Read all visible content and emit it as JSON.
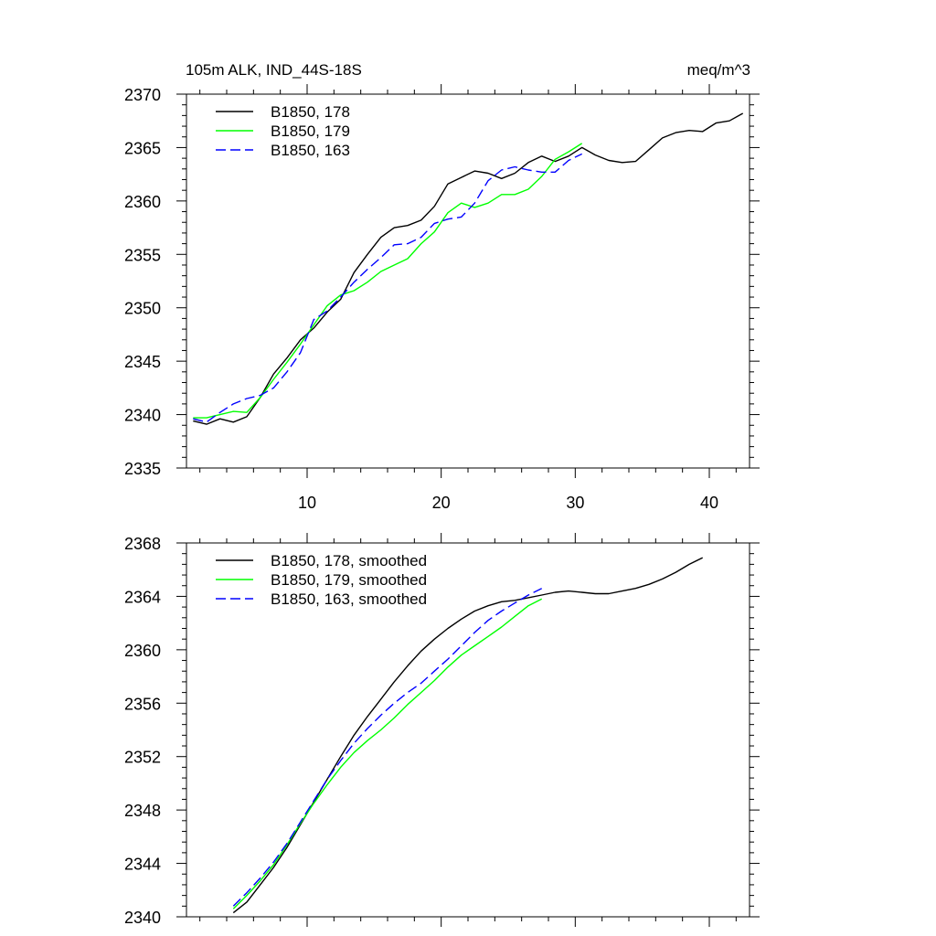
{
  "chart_data": [
    {
      "type": "line",
      "title_left": "105m ALK, IND_44S-18S",
      "title_right": "meq/m^3",
      "xlim": [
        1,
        43
      ],
      "ylim": [
        2335,
        2370
      ],
      "x_ticks": [
        10,
        20,
        30,
        40
      ],
      "x_tick_labels": [
        "10",
        "20",
        "30",
        "40"
      ],
      "y_ticks": [
        2335,
        2340,
        2345,
        2350,
        2355,
        2360,
        2365,
        2370
      ],
      "y_tick_labels": [
        "2335",
        "2340",
        "2345",
        "2350",
        "2355",
        "2360",
        "2365",
        "2370"
      ],
      "legend_position": "top-left",
      "series": [
        {
          "name": "B1850, 178",
          "color": "#000000",
          "dash": "solid",
          "x": [
            1.5,
            2.5,
            3.5,
            4.5,
            5.5,
            6.5,
            7.5,
            8.5,
            9.5,
            10.5,
            11.5,
            12.5,
            13.5,
            14.5,
            15.5,
            16.5,
            17.5,
            18.5,
            19.5,
            20.5,
            21.5,
            22.5,
            23.5,
            24.5,
            25.5,
            26.5,
            27.5,
            28.5,
            29.5,
            30.5,
            31.5,
            32.5,
            33.5,
            34.5,
            35.5,
            36.5,
            37.5,
            38.5,
            39.5,
            40.5,
            41.5,
            42.5
          ],
          "y": [
            2339.4,
            2339.1,
            2339.6,
            2339.3,
            2339.8,
            2341.6,
            2343.8,
            2345.3,
            2347.0,
            2348.1,
            2349.6,
            2350.8,
            2353.3,
            2355.0,
            2356.6,
            2357.5,
            2357.7,
            2358.2,
            2359.5,
            2361.6,
            2362.2,
            2362.8,
            2362.6,
            2362.1,
            2362.6,
            2363.6,
            2364.2,
            2363.7,
            2364.2,
            2365.0,
            2364.3,
            2363.8,
            2363.6,
            2363.7,
            2364.8,
            2365.9,
            2366.4,
            2366.6,
            2366.5,
            2367.3,
            2367.5,
            2368.2
          ]
        },
        {
          "name": "B1850, 179",
          "color": "#00ff00",
          "dash": "solid",
          "x": [
            1.5,
            2.5,
            3.5,
            4.5,
            5.5,
            6.5,
            7.5,
            8.5,
            9.5,
            10.5,
            11.5,
            12.5,
            13.5,
            14.5,
            15.5,
            16.5,
            17.5,
            18.5,
            19.5,
            20.5,
            21.5,
            22.5,
            23.5,
            24.5,
            25.5,
            26.5,
            27.5,
            28.5,
            29.5,
            30.5
          ],
          "y": [
            2339.7,
            2339.7,
            2340.0,
            2340.3,
            2340.2,
            2341.6,
            2343.3,
            2344.9,
            2346.6,
            2348.4,
            2350.2,
            2351.2,
            2351.6,
            2352.4,
            2353.4,
            2354.0,
            2354.6,
            2356.0,
            2357.1,
            2358.9,
            2359.8,
            2359.4,
            2359.8,
            2360.6,
            2360.6,
            2361.1,
            2362.3,
            2363.9,
            2364.6,
            2365.4
          ]
        },
        {
          "name": "B1850, 163",
          "color": "#0000ff",
          "dash": "dashed",
          "x": [
            1.5,
            2.5,
            3.5,
            4.5,
            5.5,
            6.5,
            7.5,
            8.5,
            9.5,
            10.5,
            11.5,
            12.5,
            13.5,
            14.5,
            15.5,
            16.5,
            17.5,
            18.5,
            19.5,
            20.5,
            21.5,
            22.5,
            23.5,
            24.5,
            25.5,
            26.5,
            27.5,
            28.5,
            29.5,
            30.5
          ],
          "y": [
            2339.6,
            2339.3,
            2340.2,
            2341.0,
            2341.5,
            2341.8,
            2342.5,
            2344.0,
            2345.8,
            2348.9,
            2349.7,
            2351.0,
            2352.4,
            2353.6,
            2354.7,
            2355.9,
            2356.0,
            2356.6,
            2357.9,
            2358.3,
            2358.5,
            2359.8,
            2361.9,
            2362.9,
            2363.2,
            2362.9,
            2362.7,
            2362.7,
            2363.8,
            2364.4
          ]
        }
      ]
    },
    {
      "type": "line",
      "xlim": [
        1,
        43
      ],
      "ylim": [
        2340,
        2368
      ],
      "x_ticks": [
        10,
        20,
        30,
        40
      ],
      "y_ticks": [
        2340,
        2344,
        2348,
        2352,
        2356,
        2360,
        2364,
        2368
      ],
      "y_tick_labels": [
        "2340",
        "2344",
        "2348",
        "2352",
        "2356",
        "2360",
        "2364",
        "2368"
      ],
      "legend_position": "top-left",
      "series": [
        {
          "name": "B1850, 178, smoothed",
          "color": "#000000",
          "dash": "solid",
          "x": [
            4.5,
            5.5,
            6.5,
            7.5,
            8.5,
            9.5,
            10.5,
            11.5,
            12.5,
            13.5,
            14.5,
            15.5,
            16.5,
            17.5,
            18.5,
            19.5,
            20.5,
            21.5,
            22.5,
            23.5,
            24.5,
            25.5,
            26.5,
            27.5,
            28.5,
            29.5,
            30.5,
            31.5,
            32.5,
            33.5,
            34.5,
            35.5,
            36.5,
            37.5,
            38.5,
            39.5
          ],
          "y": [
            2340.3,
            2341.1,
            2342.4,
            2343.7,
            2345.2,
            2346.9,
            2348.6,
            2350.3,
            2352.0,
            2353.6,
            2355.0,
            2356.3,
            2357.6,
            2358.8,
            2359.9,
            2360.8,
            2361.6,
            2362.3,
            2362.9,
            2363.3,
            2363.6,
            2363.7,
            2363.9,
            2364.1,
            2364.3,
            2364.4,
            2364.3,
            2364.2,
            2364.2,
            2364.4,
            2364.6,
            2364.9,
            2365.3,
            2365.8,
            2366.4,
            2366.9
          ]
        },
        {
          "name": "B1850, 179, smoothed",
          "color": "#00ff00",
          "dash": "solid",
          "x": [
            4.5,
            5.5,
            6.5,
            7.5,
            8.5,
            9.5,
            10.5,
            11.5,
            12.5,
            13.5,
            14.5,
            15.5,
            16.5,
            17.5,
            18.5,
            19.5,
            20.5,
            21.5,
            22.5,
            23.5,
            24.5,
            25.5,
            26.5,
            27.5
          ],
          "y": [
            2340.6,
            2341.6,
            2342.7,
            2343.9,
            2345.4,
            2347.0,
            2348.5,
            2349.9,
            2351.2,
            2352.3,
            2353.2,
            2354.0,
            2354.9,
            2355.9,
            2356.8,
            2357.7,
            2358.7,
            2359.6,
            2360.3,
            2361.0,
            2361.7,
            2362.5,
            2363.3,
            2363.8
          ]
        },
        {
          "name": "B1850, 163, smoothed",
          "color": "#0000ff",
          "dash": "dashed",
          "x": [
            4.5,
            5.5,
            6.5,
            7.5,
            8.5,
            9.5,
            10.5,
            11.5,
            12.5,
            13.5,
            14.5,
            15.5,
            16.5,
            17.5,
            18.5,
            19.5,
            20.5,
            21.5,
            22.5,
            23.5,
            24.5,
            25.5,
            26.5,
            27.5
          ],
          "y": [
            2340.8,
            2341.8,
            2342.9,
            2344.1,
            2345.5,
            2347.1,
            2348.7,
            2350.3,
            2351.7,
            2353.0,
            2354.1,
            2355.1,
            2356.0,
            2356.8,
            2357.5,
            2358.4,
            2359.3,
            2360.3,
            2361.3,
            2362.2,
            2362.9,
            2363.5,
            2364.1,
            2364.6
          ]
        }
      ]
    }
  ]
}
